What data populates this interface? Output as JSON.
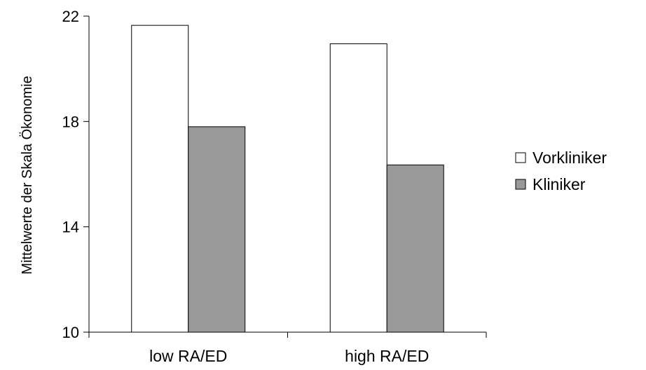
{
  "chart_data": {
    "type": "bar",
    "title": "",
    "xlabel": "",
    "ylabel": "Mittelwerte der Skala Ökonomie",
    "categories": [
      "low RA/ED",
      "high RA/ED"
    ],
    "series": [
      {
        "name": "Vorkliniker",
        "values": [
          21.65,
          20.95
        ],
        "color": "#ffffff"
      },
      {
        "name": "Kliniker",
        "values": [
          17.8,
          16.35
        ],
        "color": "#999999"
      }
    ],
    "ylim": [
      10,
      22
    ],
    "yticks": [
      10,
      14,
      18,
      22
    ],
    "grid": false,
    "legend": "right"
  }
}
